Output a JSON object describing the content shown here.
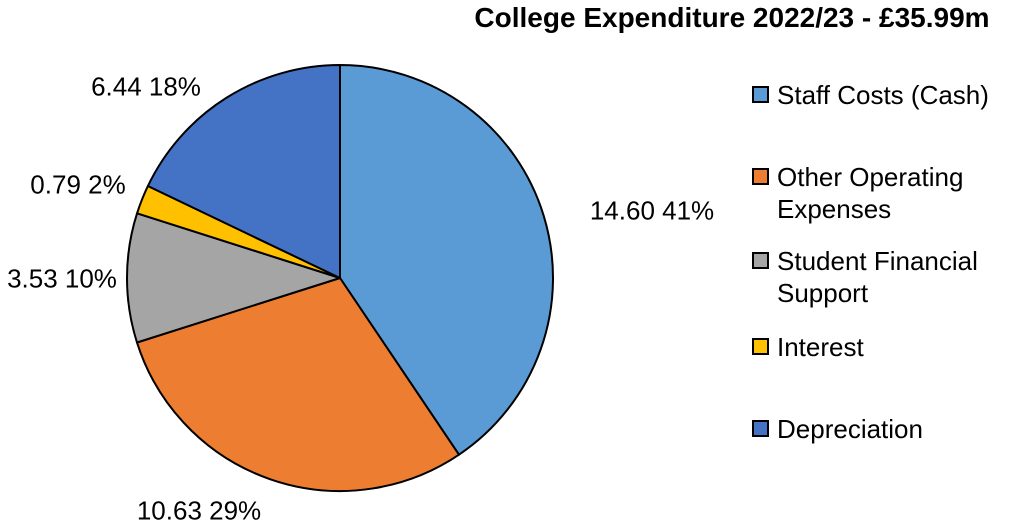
{
  "chart_data": {
    "type": "pie",
    "title": "College Expenditure 2022/23 - £35.99m",
    "total": 35.99,
    "legend_position": "right",
    "background_color": "#FFFFFF",
    "outline_color": "#000000",
    "label_format": "value percent",
    "slices": [
      {
        "label": "Staff Costs (Cash)",
        "value": 14.6,
        "pct": "41%",
        "data_label": "14.60 41%",
        "color": "#5B9BD5"
      },
      {
        "label": "Other Operating Expenses",
        "value": 10.63,
        "pct": "29%",
        "data_label": "10.63 29%",
        "color": "#ED7D31"
      },
      {
        "label": "Student Financial Support",
        "value": 3.53,
        "pct": "10%",
        "data_label": "3.53 10%",
        "color": "#A5A5A5"
      },
      {
        "label": "Interest",
        "value": 0.79,
        "pct": "2%",
        "data_label": "0.79 2%",
        "color": "#FFC000"
      },
      {
        "label": "Depreciation",
        "value": 6.44,
        "pct": "18%",
        "data_label": "6.44 18%",
        "color": "#4472C4"
      }
    ]
  }
}
